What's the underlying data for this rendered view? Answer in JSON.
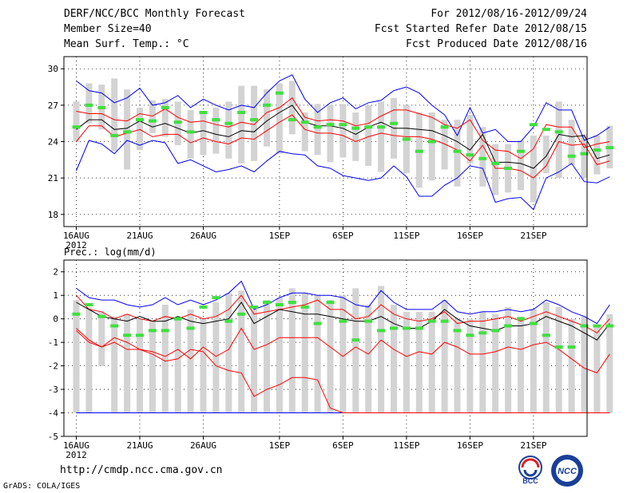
{
  "header": {
    "title": "DERF/NCC/BCC Monthly Forecast",
    "member_size": "Member Size=40",
    "variable": "Mean Surf. Temp.: °C",
    "period": "For 2012/08/16-2012/09/24",
    "fcst_started": "Fcst Started Refer Date 2012/08/15",
    "fcst_produced": "Fcst Produced Date 2012/08/16"
  },
  "footer": {
    "url": "http://cmdp.ncc.cma.gov.cn",
    "grads": "GrADS: COLA/IGES",
    "logo_bcc": "BCC",
    "logo_ncc": "NCC"
  },
  "colors": {
    "spread": "#0000ff",
    "quartile": "#ff0000",
    "mean": "#000000",
    "box": "#d3d3d3",
    "observed": "#3ee03e"
  },
  "chart_data": [
    {
      "type": "line",
      "name": "temperature",
      "title": "Mean Surf. Temp.: °C",
      "ylim": [
        17,
        31
      ],
      "yticks": [
        18,
        21,
        24,
        27,
        30
      ],
      "x_ticks": [
        {
          "day": 0,
          "label": "16AUG"
        },
        {
          "day": 5,
          "label": "21AUG"
        },
        {
          "day": 10,
          "label": "26AUG"
        },
        {
          "day": 16,
          "label": "1SEP"
        },
        {
          "day": 21,
          "label": "6SEP"
        },
        {
          "day": 26,
          "label": "11SEP"
        },
        {
          "day": 31,
          "label": "16SEP"
        },
        {
          "day": 36,
          "label": "21SEP"
        }
      ],
      "year_label": "2012",
      "series": [
        {
          "name": "max",
          "values": [
            29.0,
            28.2,
            28.0,
            27.2,
            27.6,
            28.4,
            27.0,
            27.2,
            27.8,
            26.8,
            27.5,
            27.0,
            26.6,
            27.0,
            26.8,
            28.0,
            29.0,
            29.5,
            27.5,
            26.4,
            27.2,
            27.6,
            26.7,
            27.2,
            27.4,
            28.2,
            28.5,
            28.0,
            27.0,
            26.2,
            24.5,
            26.8,
            24.7,
            25.0,
            24.0,
            24.0,
            25.2,
            27.2,
            26.6,
            26.6,
            24.1,
            24.5,
            25.2
          ]
        },
        {
          "name": "q3",
          "values": [
            26.5,
            26.3,
            26.3,
            25.8,
            25.7,
            26.3,
            26.1,
            26.7,
            26.0,
            25.6,
            25.7,
            25.4,
            25.2,
            25.6,
            25.4,
            26.4,
            26.8,
            27.6,
            26.0,
            25.7,
            25.8,
            25.7,
            25.3,
            25.5,
            26.1,
            26.6,
            26.6,
            26.3,
            26.0,
            25.4,
            25.1,
            25.8,
            24.1,
            23.3,
            23.2,
            22.6,
            23.4,
            25.4,
            25.2,
            25.2,
            23.5,
            23.8,
            24.0
          ]
        },
        {
          "name": "mean",
          "values": [
            25.0,
            25.8,
            25.8,
            25.0,
            25.1,
            25.7,
            25.2,
            25.5,
            25.1,
            24.7,
            24.9,
            24.6,
            24.4,
            24.9,
            24.8,
            25.7,
            26.4,
            27.0,
            25.6,
            25.3,
            25.3,
            25.1,
            24.6,
            25.2,
            25.6,
            25.1,
            25.1,
            25.0,
            24.9,
            24.5,
            24.0,
            23.3,
            24.6,
            22.3,
            22.3,
            22.2,
            21.8,
            22.8,
            24.6,
            24.4,
            24.5,
            22.6,
            22.9
          ]
        },
        {
          "name": "q1",
          "values": [
            24.0,
            25.3,
            25.3,
            24.4,
            24.7,
            25.0,
            24.4,
            24.6,
            24.6,
            23.9,
            24.3,
            24.0,
            23.8,
            24.3,
            24.2,
            24.9,
            25.6,
            26.2,
            25.0,
            24.7,
            24.7,
            24.5,
            24.0,
            24.4,
            24.7,
            24.5,
            24.4,
            24.4,
            24.2,
            23.8,
            23.3,
            22.4,
            23.7,
            21.8,
            21.8,
            21.6,
            21.0,
            22.0,
            24.0,
            23.7,
            23.8,
            22.1,
            22.4
          ]
        },
        {
          "name": "min",
          "values": [
            21.6,
            24.1,
            23.8,
            23.0,
            24.1,
            23.7,
            24.1,
            23.9,
            22.2,
            22.5,
            22.0,
            21.5,
            21.7,
            22.0,
            21.5,
            22.4,
            23.2,
            23.0,
            22.9,
            22.0,
            21.8,
            21.2,
            21.0,
            20.8,
            21.0,
            22.0,
            21.1,
            19.5,
            19.5,
            20.4,
            21.0,
            22.0,
            21.8,
            19.0,
            19.3,
            19.4,
            18.4,
            21.0,
            21.5,
            22.2,
            20.7,
            20.6,
            21.1
          ]
        }
      ],
      "boxes": [
        [
          24.0,
          27.3
        ],
        [
          25.5,
          28.8
        ],
        [
          25.0,
          28.7
        ],
        [
          23.2,
          29.2
        ],
        [
          21.7,
          28.3
        ],
        [
          23.3,
          26.8
        ],
        [
          24.7,
          27.4
        ],
        [
          24.4,
          27.5
        ],
        [
          23.7,
          27.3
        ],
        [
          22.6,
          26.6
        ],
        [
          22.9,
          26.3
        ],
        [
          23.0,
          26.8
        ],
        [
          22.6,
          27.3
        ],
        [
          22.2,
          28.6
        ],
        [
          22.4,
          28.6
        ],
        [
          23.6,
          28.3
        ],
        [
          23.0,
          28.8
        ],
        [
          24.6,
          29.0
        ],
        [
          23.2,
          26.4
        ],
        [
          22.9,
          27.1
        ],
        [
          22.3,
          27.0
        ],
        [
          22.7,
          27.1
        ],
        [
          22.4,
          26.4
        ],
        [
          22.0,
          27.0
        ],
        [
          21.5,
          27.3
        ],
        [
          22.6,
          27.6
        ],
        [
          21.4,
          27.0
        ],
        [
          20.2,
          26.4
        ],
        [
          20.8,
          26.4
        ],
        [
          21.7,
          25.8
        ],
        [
          20.3,
          25.8
        ],
        [
          22.2,
          26.2
        ],
        [
          20.3,
          25.2
        ],
        [
          19.6,
          23.8
        ],
        [
          19.8,
          23.8
        ],
        [
          20.0,
          24.1
        ],
        [
          19.0,
          24.5
        ],
        [
          21.4,
          24.5
        ],
        [
          21.0,
          27.3
        ],
        [
          22.1,
          25.8
        ],
        [
          21.0,
          24.6
        ],
        [
          21.3,
          24.5
        ],
        [
          21.8,
          25.3
        ]
      ],
      "observed": [
        25.2,
        27.0,
        26.8,
        24.5,
        24.8,
        25.8,
        25.7,
        26.8,
        25.6,
        24.8,
        26.4,
        25.8,
        25.5,
        26.4,
        25.8,
        27.0,
        28.0,
        25.8,
        25.6,
        25.2,
        25.4,
        25.4,
        25.1,
        25.2,
        25.2,
        25.5,
        24.2,
        23.2,
        24.0,
        25.2,
        23.2,
        22.9,
        22.6,
        22.2,
        21.8,
        23.2,
        25.4,
        25.0,
        24.8,
        22.8,
        23.0,
        23.3,
        23.5
      ]
    },
    {
      "type": "line",
      "name": "precipitation",
      "title": "Prec.: log(mm/d)",
      "ylim": [
        -5,
        2.5
      ],
      "yticks": [
        -5,
        -4,
        -3,
        -2,
        -1,
        0,
        1,
        2
      ],
      "x_ticks": [
        {
          "day": 0,
          "label": "16AUG"
        },
        {
          "day": 5,
          "label": "21AUG"
        },
        {
          "day": 10,
          "label": "26AUG"
        },
        {
          "day": 16,
          "label": "1SEP"
        },
        {
          "day": 21,
          "label": "6SEP"
        },
        {
          "day": 26,
          "label": "11SEP"
        },
        {
          "day": 31,
          "label": "16SEP"
        },
        {
          "day": 36,
          "label": "21SEP"
        }
      ],
      "year_label": "2012",
      "series": [
        {
          "name": "max",
          "values": [
            1.3,
            0.9,
            0.8,
            0.8,
            0.6,
            0.5,
            0.6,
            0.9,
            0.6,
            0.8,
            0.6,
            0.8,
            1.1,
            1.6,
            0.4,
            0.6,
            0.9,
            1.1,
            1.1,
            1.0,
            1.0,
            0.9,
            0.6,
            0.5,
            1.2,
            0.7,
            0.4,
            0.4,
            0.4,
            0.8,
            0.3,
            0.2,
            0.3,
            0.3,
            0.4,
            0.3,
            0.4,
            0.8,
            0.6,
            0.3,
            0.1,
            -0.2,
            0.6
          ]
        },
        {
          "name": "q3",
          "values": [
            1.0,
            0.4,
            0.3,
            0.0,
            0.2,
            0.0,
            -0.1,
            0.1,
            0.0,
            0.2,
            0.0,
            0.1,
            0.4,
            1.0,
            0.2,
            0.3,
            0.4,
            0.5,
            0.6,
            0.8,
            0.4,
            0.4,
            0.0,
            0.1,
            0.6,
            0.2,
            0.0,
            -0.1,
            0.0,
            0.3,
            -0.2,
            -0.1,
            -0.1,
            0.0,
            0.1,
            -0.1,
            0.1,
            0.3,
            0.1,
            -0.1,
            -0.3,
            -0.6,
            0.0
          ]
        },
        {
          "name": "mean",
          "values": [
            0.7,
            0.4,
            0.1,
            0.0,
            -0.1,
            0.1,
            -0.1,
            -0.1,
            0.1,
            -0.1,
            -0.2,
            -0.1,
            0.0,
            0.7,
            -0.2,
            0.1,
            0.4,
            0.3,
            0.2,
            0.2,
            0.1,
            0.0,
            -0.1,
            -0.1,
            0.1,
            -0.2,
            -0.4,
            -0.4,
            -0.1,
            0.4,
            0.0,
            -0.3,
            -0.4,
            -0.5,
            -0.3,
            -0.3,
            -0.2,
            0.1,
            -0.1,
            -0.3,
            -0.6,
            -0.9,
            -0.2
          ]
        },
        {
          "name": "q1",
          "values": [
            -0.5,
            -1.0,
            -1.2,
            -1.0,
            -1.3,
            -1.3,
            -1.4,
            -1.6,
            -1.3,
            -1.7,
            -1.2,
            -1.6,
            -1.3,
            -0.4,
            -1.3,
            -1.1,
            -0.8,
            -0.8,
            -0.8,
            -0.8,
            -1.2,
            -1.6,
            -1.2,
            -1.5,
            -0.9,
            -1.3,
            -1.6,
            -1.4,
            -1.5,
            -1.0,
            -1.2,
            -1.5,
            -1.5,
            -1.4,
            -1.2,
            -1.3,
            -1.1,
            -1.0,
            -1.3,
            -1.7,
            -2.1,
            -2.3,
            -1.5
          ]
        },
        {
          "name": "min",
          "values": [
            -4.0,
            -4.0,
            -4.0,
            -4.0,
            -4.0,
            -4.0,
            -4.0,
            -4.0,
            -4.0,
            -4.0,
            -4.0,
            -4.0,
            -4.0,
            -4.0,
            -4.0,
            -4.0,
            -4.0,
            -4.0,
            -4.0,
            -4.0,
            -4.0,
            -4.0,
            -4.0,
            -4.0,
            -4.0,
            -4.0,
            -4.0,
            -4.0,
            -4.0,
            -4.0,
            -4.0,
            -4.0,
            -4.0,
            -4.0,
            -4.0,
            -4.0,
            -4.0,
            -4.0,
            -4.0,
            -4.0,
            -4.0,
            -4.0,
            -4.0
          ]
        },
        {
          "name": "q1_low",
          "values": [
            -0.4,
            -0.9,
            -1.2,
            -0.8,
            -1.0,
            -1.3,
            -1.5,
            -1.8,
            -1.7,
            -1.3,
            -1.4,
            -2.0,
            -2.2,
            -2.3,
            -3.3,
            -3.0,
            -2.8,
            -2.5,
            -2.5,
            -2.6,
            -3.8,
            -4.0,
            -4.0,
            -4.0,
            -4.0,
            -4.0,
            -4.0,
            -4.0,
            -4.0,
            -4.0,
            -4.0,
            -4.0,
            -4.0,
            -4.0,
            -4.0,
            -4.0,
            -4.0,
            -4.0,
            -4.0,
            -4.0,
            -4.0,
            -4.0,
            -4.0
          ]
        }
      ],
      "boxes": [
        [
          -4.0,
          0.8
        ],
        [
          -4.0,
          0.5
        ],
        [
          -2.0,
          0.3
        ],
        [
          -4.0,
          0.1
        ],
        [
          -4.0,
          0.2
        ],
        [
          -4.0,
          0.0
        ],
        [
          -4.0,
          -0.1
        ],
        [
          -4.0,
          0.6
        ],
        [
          -4.0,
          0.0
        ],
        [
          -4.0,
          0.4
        ],
        [
          -4.0,
          0.0
        ],
        [
          -4.0,
          0.7
        ],
        [
          -4.0,
          1.1
        ],
        [
          -4.0,
          1.2
        ],
        [
          -4.0,
          0.4
        ],
        [
          -4.0,
          0.8
        ],
        [
          -4.0,
          0.9
        ],
        [
          -4.0,
          1.3
        ],
        [
          -4.0,
          1.1
        ],
        [
          -4.0,
          1.0
        ],
        [
          -4.0,
          0.8
        ],
        [
          -4.0,
          1.0
        ],
        [
          -4.0,
          1.3
        ],
        [
          -4.0,
          0.6
        ],
        [
          -4.0,
          1.4
        ],
        [
          -4.0,
          0.6
        ],
        [
          -4.0,
          0.3
        ],
        [
          -4.0,
          0.3
        ],
        [
          -4.0,
          0.3
        ],
        [
          -4.0,
          0.8
        ],
        [
          -4.0,
          0.0
        ],
        [
          -4.0,
          0.0
        ],
        [
          -4.0,
          0.3
        ],
        [
          -4.0,
          0.2
        ],
        [
          -4.0,
          0.5
        ],
        [
          -4.0,
          0.1
        ],
        [
          -4.0,
          0.4
        ],
        [
          -4.0,
          0.7
        ],
        [
          -4.0,
          0.5
        ],
        [
          -4.0,
          0.0
        ],
        [
          -4.0,
          0.1
        ],
        [
          -4.0,
          -0.3
        ],
        [
          -4.0,
          0.2
        ]
      ],
      "observed": [
        0.2,
        0.6,
        0.1,
        -0.3,
        -0.7,
        -0.7,
        -0.5,
        -0.5,
        0.0,
        -0.4,
        0.5,
        0.9,
        -0.1,
        0.2,
        0.5,
        0.7,
        0.6,
        0.7,
        0.5,
        -0.2,
        0.7,
        -0.1,
        -0.9,
        -0.1,
        -0.5,
        -0.4,
        -0.4,
        -0.4,
        -0.1,
        -0.1,
        -0.5,
        -0.7,
        -0.6,
        -0.5,
        -0.3,
        0.0,
        -0.2,
        -0.7,
        -1.2,
        -1.2,
        -0.3,
        -0.3,
        -0.3
      ]
    }
  ]
}
